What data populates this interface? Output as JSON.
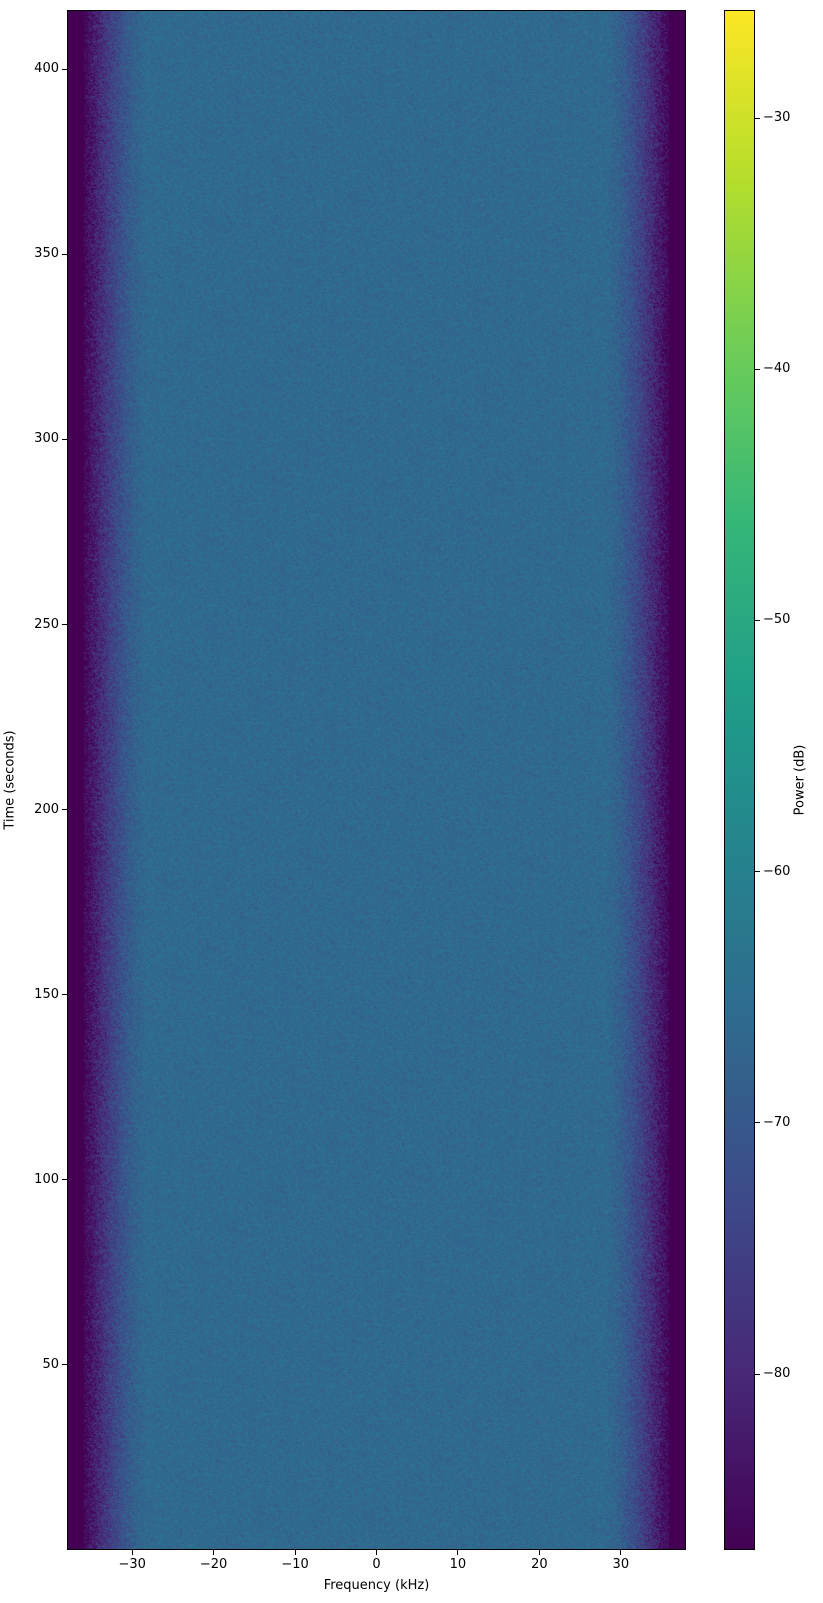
{
  "chart_data": {
    "type": "heatmap",
    "title": "",
    "xlabel": "Frequency (kHz)",
    "ylabel": "Time (seconds)",
    "colorbar_label": "Power (dB)",
    "colormap": "viridis",
    "xlim": [
      -38,
      38
    ],
    "ylim": [
      0,
      416
    ],
    "clim": [
      -87,
      -25.7
    ],
    "xticks": [
      -30,
      -20,
      -10,
      0,
      10,
      20,
      30
    ],
    "xtick_labels": [
      "−30",
      "−20",
      "−10",
      "0",
      "10",
      "20",
      "30"
    ],
    "yticks": [
      50,
      100,
      150,
      200,
      250,
      300,
      350,
      400
    ],
    "ytick_labels": [
      "50",
      "100",
      "150",
      "200",
      "250",
      "300",
      "350",
      "400"
    ],
    "cticks": [
      -80,
      -70,
      -60,
      -50,
      -40,
      -30
    ],
    "ctick_labels": [
      "−80",
      "−70",
      "−60",
      "−50",
      "−40",
      "−30"
    ],
    "profile": {
      "passband_power_db": -66,
      "noise_floor_db": -87,
      "rolloff_start_khz": 28,
      "rolloff_end_khz": 36
    },
    "grid": false
  }
}
